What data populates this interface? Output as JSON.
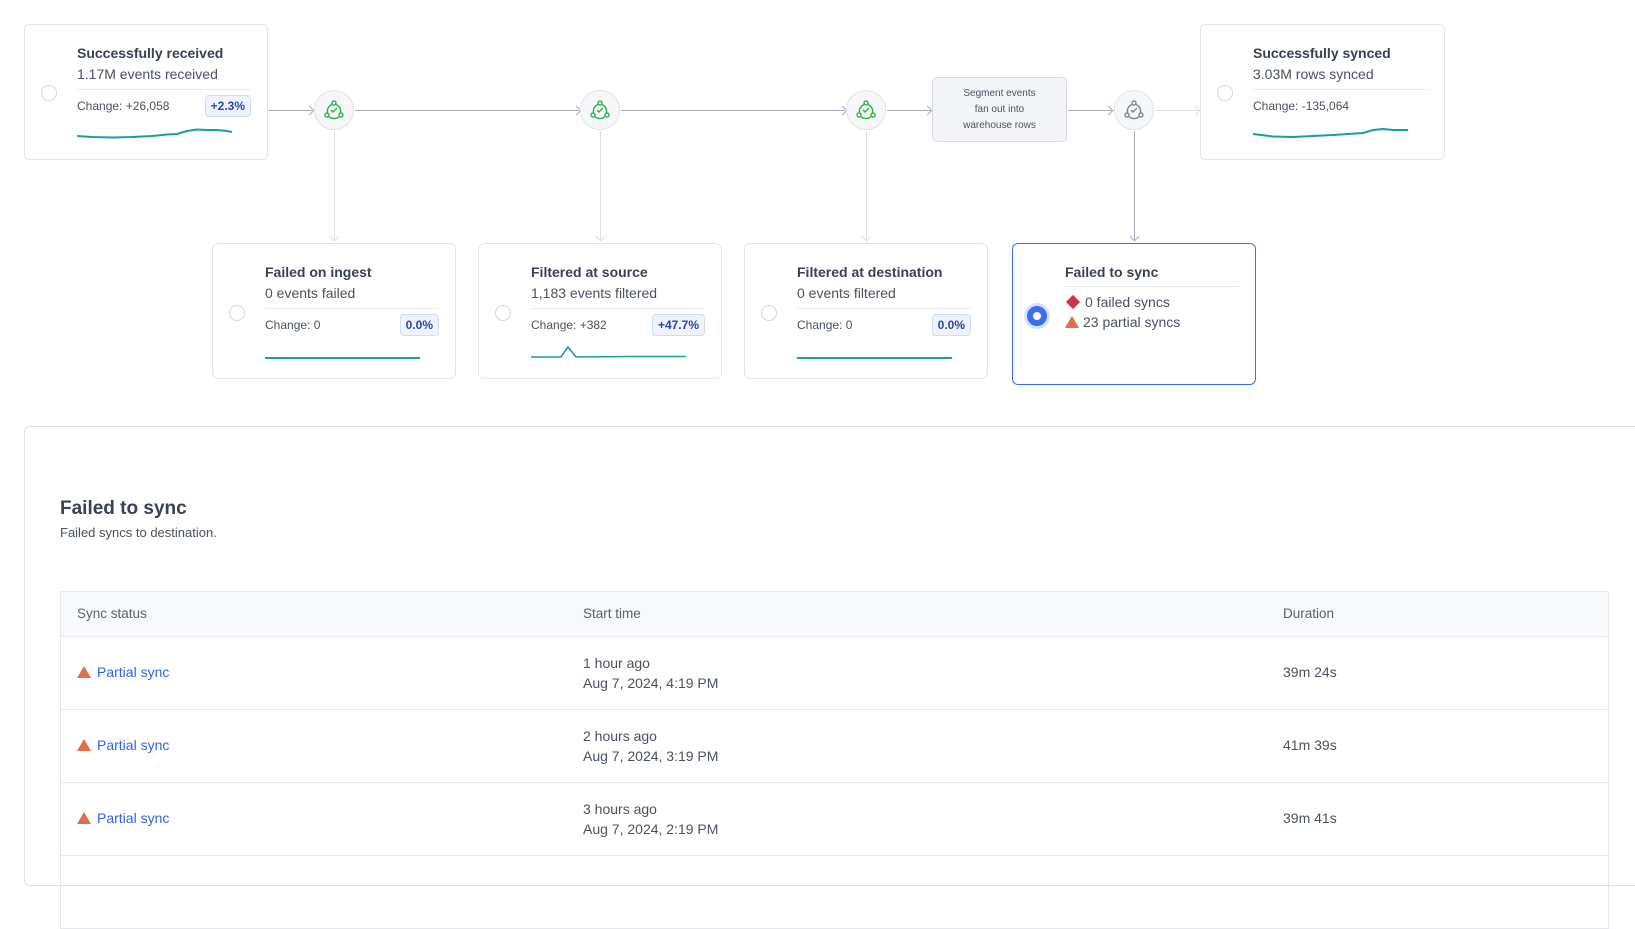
{
  "flow": {
    "received": {
      "title": "Successfully received",
      "value": "1.17M events received",
      "change": "Change: +26,058",
      "badge": "+2.3%"
    },
    "failed_ingest": {
      "title": "Failed on ingest",
      "value": "0 events failed",
      "change": "Change: 0",
      "badge": "0.0%"
    },
    "filtered_source": {
      "title": "Filtered at source",
      "value": "1,183 events filtered",
      "change": "Change: +382",
      "badge": "+47.7%"
    },
    "filtered_destination": {
      "title": "Filtered at destination",
      "value": "0 events filtered",
      "change": "Change: 0",
      "badge": "0.0%"
    },
    "failed_sync": {
      "title": "Failed to sync",
      "failed": "0 failed syncs",
      "partial": "23 partial syncs",
      "selected": true
    },
    "synced": {
      "title": "Successfully synced",
      "value": "3.03M rows synced",
      "change": "Change: -135,064"
    },
    "fanout_note": [
      "Segment events",
      "fan out into",
      "warehouse rows"
    ]
  },
  "panel": {
    "title": "Failed to sync",
    "subtitle": "Failed syncs to destination.",
    "columns": [
      "Sync status",
      "Start time",
      "Duration"
    ],
    "rows": [
      {
        "status": "Partial sync",
        "relative": "1 hour ago",
        "time": "Aug 7, 2024, 4:19 PM",
        "duration": "39m 24s"
      },
      {
        "status": "Partial sync",
        "relative": "2 hours ago",
        "time": "Aug 7, 2024, 3:19 PM",
        "duration": "41m 39s"
      },
      {
        "status": "Partial sync",
        "relative": "3 hours ago",
        "time": "Aug 7, 2024, 2:19 PM",
        "duration": "39m 41s"
      }
    ]
  },
  "colors": {
    "accent": "#3b6ef0",
    "sparkline": "#1a9ea4",
    "node_ok": "#2db04a",
    "warning": "#e0704c",
    "error": "#d23447",
    "link": "#2f63e8"
  }
}
